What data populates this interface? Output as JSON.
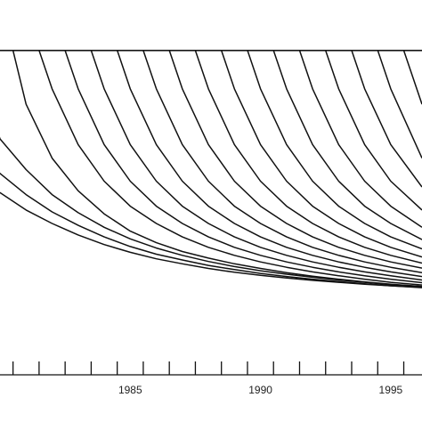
{
  "chart_data": {
    "type": "line",
    "title": "",
    "xlabel": "",
    "ylabel": "",
    "grid": false,
    "legend": "none",
    "xlim": [
      1980.0,
      1996.2
    ],
    "ylim": [
      0.33,
      1.02
    ],
    "x_ticks": [
      1980.5,
      1981.5,
      1982.5,
      1983.5,
      1984.5,
      1985.5,
      1986.5,
      1987.5,
      1988.5,
      1989.5,
      1990.5,
      1991.5,
      1992.5,
      1993.5,
      1994.5,
      1995.5
    ],
    "x_tick_labels": [
      {
        "x": 1985,
        "label": "1985"
      },
      {
        "x": 1990,
        "label": "1990"
      },
      {
        "x": 1995,
        "label": "1995"
      }
    ],
    "reference_line_y": 1.0,
    "series_color": "#111111",
    "series": [
      {
        "start": 1979.2,
        "points": [
          [
            1979.2,
            0.655
          ],
          [
            1980,
            0.63
          ],
          [
            1981,
            0.585
          ],
          [
            1982,
            0.55
          ],
          [
            1983,
            0.52
          ],
          [
            1984,
            0.495
          ],
          [
            1985,
            0.475
          ],
          [
            1986,
            0.458
          ],
          [
            1987,
            0.445
          ],
          [
            1988,
            0.433
          ],
          [
            1989,
            0.423
          ],
          [
            1990,
            0.415
          ],
          [
            1991,
            0.408
          ],
          [
            1992,
            0.402
          ],
          [
            1993,
            0.397
          ],
          [
            1994,
            0.392
          ],
          [
            1995,
            0.388
          ],
          [
            1996.2,
            0.384
          ]
        ]
      },
      {
        "start": 1979.6,
        "points": [
          [
            1979.6,
            0.705
          ],
          [
            1980,
            0.68
          ],
          [
            1981,
            0.625
          ],
          [
            1982,
            0.58
          ],
          [
            1983,
            0.545
          ],
          [
            1984,
            0.515
          ],
          [
            1985,
            0.49
          ],
          [
            1986,
            0.47
          ],
          [
            1987,
            0.455
          ],
          [
            1988,
            0.441
          ],
          [
            1989,
            0.43
          ],
          [
            1990,
            0.42
          ],
          [
            1991,
            0.412
          ],
          [
            1992,
            0.405
          ],
          [
            1993,
            0.399
          ],
          [
            1994,
            0.393
          ],
          [
            1995,
            0.388
          ],
          [
            1996.2,
            0.383
          ]
        ]
      },
      {
        "start": 1979.9,
        "points": [
          [
            1979.9,
            0.79
          ],
          [
            1980,
            0.77
          ],
          [
            1981,
            0.69
          ],
          [
            1982,
            0.625
          ],
          [
            1983,
            0.578
          ],
          [
            1984,
            0.54
          ],
          [
            1985,
            0.51
          ],
          [
            1986,
            0.486
          ],
          [
            1987,
            0.467
          ],
          [
            1988,
            0.451
          ],
          [
            1989,
            0.438
          ],
          [
            1990,
            0.427
          ],
          [
            1991,
            0.418
          ],
          [
            1992,
            0.41
          ],
          [
            1993,
            0.403
          ],
          [
            1994,
            0.397
          ],
          [
            1995,
            0.391
          ],
          [
            1996.2,
            0.386
          ]
        ]
      },
      {
        "start": 1980.5,
        "points": [
          [
            1980.5,
            1.0
          ],
          [
            1981,
            0.86
          ],
          [
            1982,
            0.72
          ],
          [
            1983,
            0.635
          ],
          [
            1984,
            0.575
          ],
          [
            1985,
            0.53
          ],
          [
            1986,
            0.5
          ],
          [
            1987,
            0.477
          ],
          [
            1988,
            0.46
          ],
          [
            1989,
            0.445
          ],
          [
            1990,
            0.433
          ],
          [
            1991,
            0.422
          ],
          [
            1992,
            0.413
          ],
          [
            1993,
            0.405
          ],
          [
            1994,
            0.398
          ],
          [
            1995,
            0.392
          ],
          [
            1996.2,
            0.386
          ]
        ]
      },
      {
        "start": 1981.5,
        "points": [
          [
            1981.5,
            1.0
          ],
          [
            1982,
            0.9
          ],
          [
            1983,
            0.755
          ],
          [
            1984,
            0.66
          ],
          [
            1985,
            0.595
          ],
          [
            1986,
            0.55
          ],
          [
            1987,
            0.515
          ],
          [
            1988,
            0.488
          ],
          [
            1989,
            0.467
          ],
          [
            1990,
            0.45
          ],
          [
            1991,
            0.436
          ],
          [
            1992,
            0.424
          ],
          [
            1993,
            0.414
          ],
          [
            1994,
            0.405
          ],
          [
            1995,
            0.397
          ],
          [
            1996.2,
            0.39
          ]
        ]
      },
      {
        "start": 1982.5,
        "points": [
          [
            1982.5,
            1.0
          ],
          [
            1983,
            0.9
          ],
          [
            1984,
            0.755
          ],
          [
            1985,
            0.66
          ],
          [
            1986,
            0.595
          ],
          [
            1987,
            0.55
          ],
          [
            1988,
            0.515
          ],
          [
            1989,
            0.488
          ],
          [
            1990,
            0.467
          ],
          [
            1991,
            0.45
          ],
          [
            1992,
            0.436
          ],
          [
            1993,
            0.424
          ],
          [
            1994,
            0.414
          ],
          [
            1995,
            0.405
          ],
          [
            1996.2,
            0.396
          ]
        ]
      },
      {
        "start": 1983.5,
        "points": [
          [
            1983.5,
            1.0
          ],
          [
            1984,
            0.9
          ],
          [
            1985,
            0.755
          ],
          [
            1986,
            0.66
          ],
          [
            1987,
            0.595
          ],
          [
            1988,
            0.55
          ],
          [
            1989,
            0.515
          ],
          [
            1990,
            0.488
          ],
          [
            1991,
            0.467
          ],
          [
            1992,
            0.45
          ],
          [
            1993,
            0.436
          ],
          [
            1994,
            0.424
          ],
          [
            1995,
            0.414
          ],
          [
            1996.2,
            0.403
          ]
        ]
      },
      {
        "start": 1984.5,
        "points": [
          [
            1984.5,
            1.0
          ],
          [
            1985,
            0.9
          ],
          [
            1986,
            0.755
          ],
          [
            1987,
            0.66
          ],
          [
            1988,
            0.595
          ],
          [
            1989,
            0.55
          ],
          [
            1990,
            0.515
          ],
          [
            1991,
            0.488
          ],
          [
            1992,
            0.467
          ],
          [
            1993,
            0.45
          ],
          [
            1994,
            0.436
          ],
          [
            1995,
            0.424
          ],
          [
            1996.2,
            0.412
          ]
        ]
      },
      {
        "start": 1985.5,
        "points": [
          [
            1985.5,
            1.0
          ],
          [
            1986,
            0.9
          ],
          [
            1987,
            0.755
          ],
          [
            1988,
            0.66
          ],
          [
            1989,
            0.595
          ],
          [
            1990,
            0.55
          ],
          [
            1991,
            0.515
          ],
          [
            1992,
            0.488
          ],
          [
            1993,
            0.467
          ],
          [
            1994,
            0.45
          ],
          [
            1995,
            0.436
          ],
          [
            1996.2,
            0.422
          ]
        ]
      },
      {
        "start": 1986.5,
        "points": [
          [
            1986.5,
            1.0
          ],
          [
            1987,
            0.9
          ],
          [
            1988,
            0.755
          ],
          [
            1989,
            0.66
          ],
          [
            1990,
            0.595
          ],
          [
            1991,
            0.55
          ],
          [
            1992,
            0.515
          ],
          [
            1993,
            0.488
          ],
          [
            1994,
            0.467
          ],
          [
            1995,
            0.45
          ],
          [
            1996.2,
            0.434
          ]
        ]
      },
      {
        "start": 1987.5,
        "points": [
          [
            1987.5,
            1.0
          ],
          [
            1988,
            0.9
          ],
          [
            1989,
            0.755
          ],
          [
            1990,
            0.66
          ],
          [
            1991,
            0.595
          ],
          [
            1992,
            0.55
          ],
          [
            1993,
            0.515
          ],
          [
            1994,
            0.488
          ],
          [
            1995,
            0.467
          ],
          [
            1996.2,
            0.447
          ]
        ]
      },
      {
        "start": 1988.5,
        "points": [
          [
            1988.5,
            1.0
          ],
          [
            1989,
            0.9
          ],
          [
            1990,
            0.755
          ],
          [
            1991,
            0.66
          ],
          [
            1992,
            0.595
          ],
          [
            1993,
            0.55
          ],
          [
            1994,
            0.515
          ],
          [
            1995,
            0.488
          ],
          [
            1996.2,
            0.463
          ]
        ]
      },
      {
        "start": 1989.5,
        "points": [
          [
            1989.5,
            1.0
          ],
          [
            1990,
            0.9
          ],
          [
            1991,
            0.755
          ],
          [
            1992,
            0.66
          ],
          [
            1993,
            0.595
          ],
          [
            1994,
            0.55
          ],
          [
            1995,
            0.515
          ],
          [
            1996.2,
            0.484
          ]
        ]
      },
      {
        "start": 1990.5,
        "points": [
          [
            1990.5,
            1.0
          ],
          [
            1991,
            0.9
          ],
          [
            1992,
            0.755
          ],
          [
            1993,
            0.66
          ],
          [
            1994,
            0.595
          ],
          [
            1995,
            0.55
          ],
          [
            1996.2,
            0.508
          ]
        ]
      },
      {
        "start": 1991.5,
        "points": [
          [
            1991.5,
            1.0
          ],
          [
            1992,
            0.9
          ],
          [
            1993,
            0.755
          ],
          [
            1994,
            0.66
          ],
          [
            1995,
            0.595
          ],
          [
            1996.2,
            0.54
          ]
        ]
      },
      {
        "start": 1992.5,
        "points": [
          [
            1992.5,
            1.0
          ],
          [
            1993,
            0.9
          ],
          [
            1994,
            0.755
          ],
          [
            1995,
            0.66
          ],
          [
            1996.2,
            0.585
          ]
        ]
      },
      {
        "start": 1993.5,
        "points": [
          [
            1993.5,
            1.0
          ],
          [
            1994,
            0.9
          ],
          [
            1995,
            0.755
          ],
          [
            1996.2,
            0.645
          ]
        ]
      },
      {
        "start": 1994.5,
        "points": [
          [
            1994.5,
            1.0
          ],
          [
            1995,
            0.9
          ],
          [
            1996.2,
            0.72
          ]
        ]
      },
      {
        "start": 1995.5,
        "points": [
          [
            1995.5,
            1.0
          ],
          [
            1996.2,
            0.86
          ]
        ]
      }
    ]
  }
}
